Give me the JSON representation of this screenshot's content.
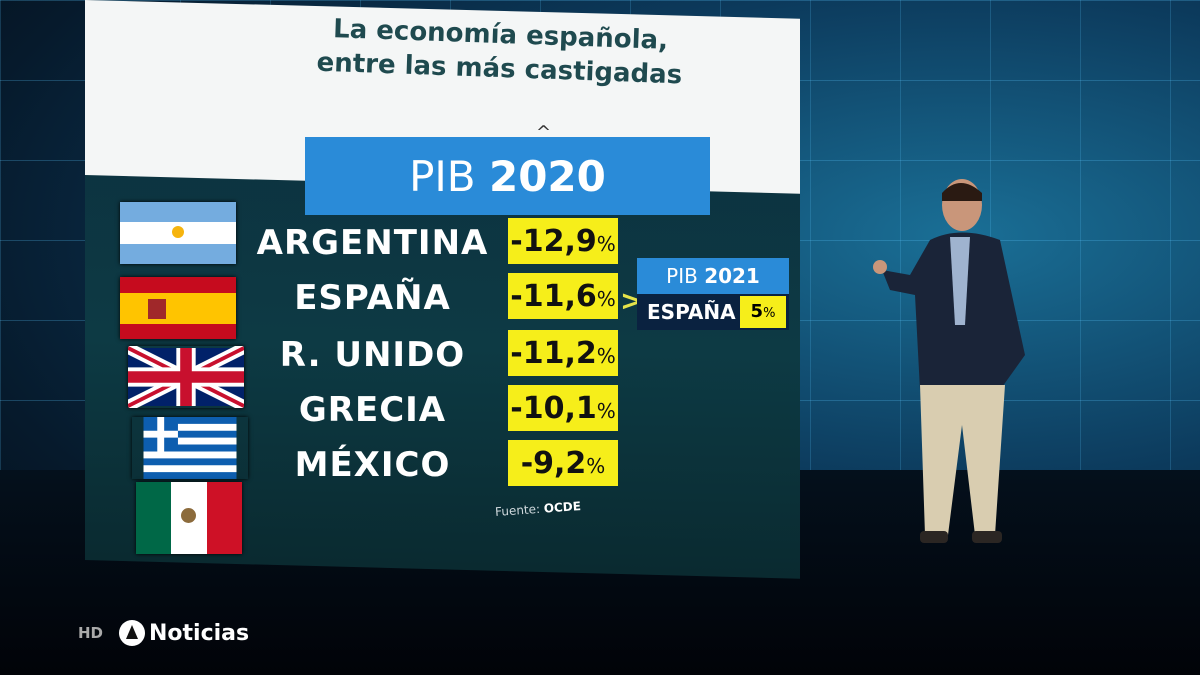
{
  "title": {
    "line1": "La economía española,",
    "line2": "entre las más castigadas",
    "caret": "^"
  },
  "pib2020": {
    "label": "PIB",
    "year": "2020"
  },
  "rows": [
    {
      "country": "ARGENTINA",
      "value": "-12,9",
      "unit": "%",
      "flag": "argentina-flag"
    },
    {
      "country": "ESPAÑA",
      "value": "-11,6",
      "unit": "%",
      "flag": "spain-flag"
    },
    {
      "country": "R. UNIDO",
      "value": "-11,2",
      "unit": "%",
      "flag": "uk-flag"
    },
    {
      "country": "GRECIA",
      "value": "-10,1",
      "unit": "%",
      "flag": "greece-flag"
    },
    {
      "country": "MÉXICO",
      "value": "-9,2",
      "unit": "%",
      "flag": "mexico-flag"
    }
  ],
  "source": {
    "label": "Fuente:",
    "name": "OCDE"
  },
  "pib2021": {
    "label": "PIB",
    "year": "2021",
    "country": "ESPAÑA",
    "value": "5",
    "unit": "%",
    "arrow": ">"
  },
  "logo": {
    "hd": "HD",
    "brand": "Noticias"
  },
  "colors": {
    "highlight": "#f6ee1a",
    "banner": "#2a8bd8",
    "title": "#1f4a4f"
  }
}
